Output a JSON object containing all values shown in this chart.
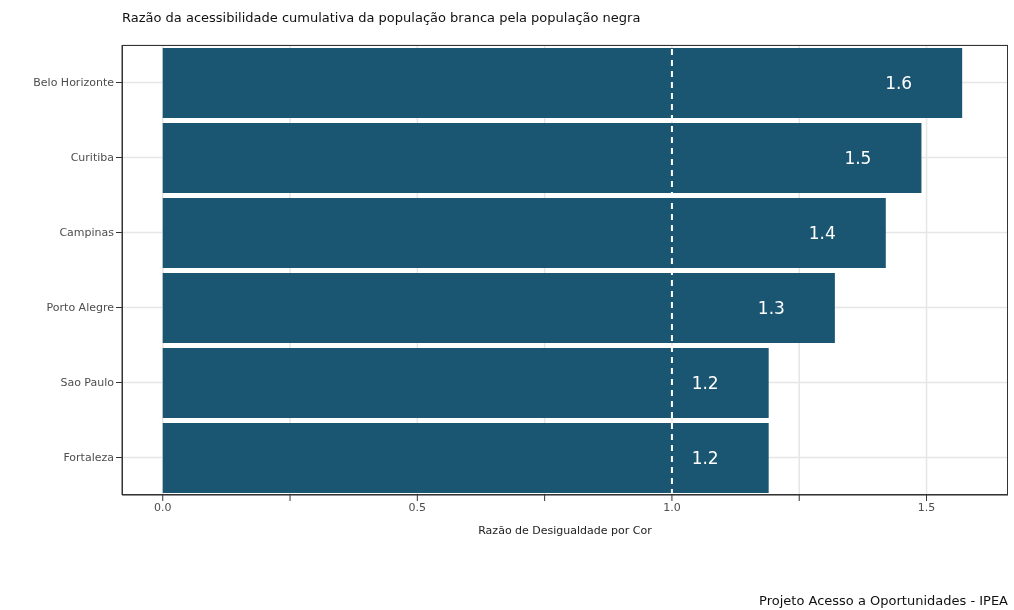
{
  "chart_data": {
    "type": "bar",
    "orientation": "horizontal",
    "title": "Razão da acessibilidade cumulativa da população branca pela população negra",
    "xlabel": "Razão de Desigualdade por Cor",
    "categories": [
      "Belo Horizonte",
      "Curitiba",
      "Campinas",
      "Porto Alegre",
      "Sao Paulo",
      "Fortaleza"
    ],
    "values": [
      1.57,
      1.49,
      1.42,
      1.32,
      1.19,
      1.19
    ],
    "value_labels": [
      "1.6",
      "1.5",
      "1.4",
      "1.3",
      "1.2",
      "1.2"
    ],
    "color": "#1a5572",
    "xlim": [
      -0.08,
      1.66
    ],
    "xticks": [
      {
        "value": 0,
        "label": "0.0"
      },
      {
        "value": 0.25,
        "label": null
      },
      {
        "value": 0.5,
        "label": "0.5"
      },
      {
        "value": 0.75,
        "label": null
      },
      {
        "value": 1,
        "label": "1.0"
      },
      {
        "value": 1.25,
        "label": null
      },
      {
        "value": 1.5,
        "label": "1.5"
      }
    ],
    "grid": true,
    "ref_lines": [
      {
        "axis": "x",
        "value": 1,
        "color": "#ffffff",
        "line_style": "dashed"
      }
    ],
    "annotations": [
      "Projeto Acesso a Oportunidades - IPEA"
    ]
  }
}
